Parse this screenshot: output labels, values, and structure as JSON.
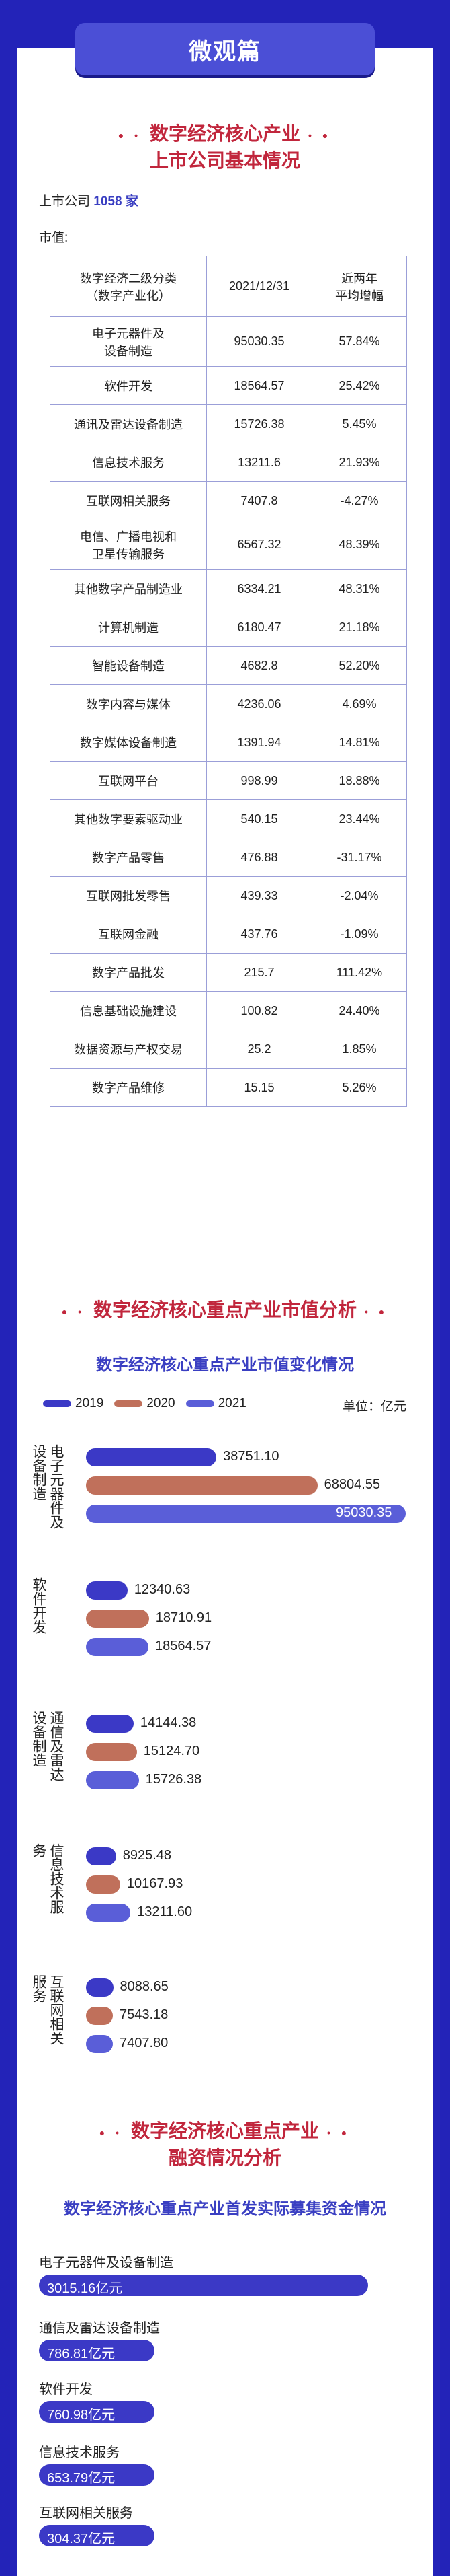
{
  "header": {
    "tab_label": "微观篇"
  },
  "section1": {
    "title_line1": "数字经济核心产业",
    "title_line2": "上市公司基本情况",
    "listed_prefix": "上市公司",
    "listed_count": "1058 家",
    "market_value_label": "市值:"
  },
  "table": {
    "headers": [
      "数字经济二级分类\n（数字产业化）",
      "2021/12/31",
      "近两年\n平均增幅"
    ],
    "rows": [
      [
        "电子元器件及\n设备制造",
        "95030.35",
        "57.84%"
      ],
      [
        "软件开发",
        "18564.57",
        "25.42%"
      ],
      [
        "通讯及雷达设备制造",
        "15726.38",
        "5.45%"
      ],
      [
        "信息技术服务",
        "13211.6",
        "21.93%"
      ],
      [
        "互联网相关服务",
        "7407.8",
        "-4.27%"
      ],
      [
        "电信、广播电视和\n卫星传输服务",
        "6567.32",
        "48.39%"
      ],
      [
        "其他数字产品制造业",
        "6334.21",
        "48.31%"
      ],
      [
        "计算机制造",
        "6180.47",
        "21.18%"
      ],
      [
        "智能设备制造",
        "4682.8",
        "52.20%"
      ],
      [
        "数字内容与媒体",
        "4236.06",
        "4.69%"
      ],
      [
        "数字媒体设备制造",
        "1391.94",
        "14.81%"
      ],
      [
        "互联网平台",
        "998.99",
        "18.88%"
      ],
      [
        "其他数字要素驱动业",
        "540.15",
        "23.44%"
      ],
      [
        "数字产品零售",
        "476.88",
        "-31.17%"
      ],
      [
        "互联网批发零售",
        "439.33",
        "-2.04%"
      ],
      [
        "互联网金融",
        "437.76",
        "-1.09%"
      ],
      [
        "数字产品批发",
        "215.7",
        "111.42%"
      ],
      [
        "信息基础设施建设",
        "100.82",
        "24.40%"
      ],
      [
        "数据资源与产权交易",
        "25.2",
        "1.85%"
      ],
      [
        "数字产品维修",
        "15.15",
        "5.26%"
      ]
    ]
  },
  "section2": {
    "title": "数字经济核心重点产业市值分析",
    "subtitle": "数字经济核心重点产业市值变化情况",
    "unit": "单位：亿元"
  },
  "chart_data": [
    {
      "type": "bar",
      "orientation": "horizontal",
      "categories": [
        "电子元器件及设备制造",
        "软件开发",
        "通信及雷达设备制造",
        "信息技术服务",
        "互联网相关服务"
      ],
      "series": [
        {
          "name": "2019",
          "color": "#3b39c6",
          "values": [
            38751.1,
            12340.63,
            14144.38,
            8925.48,
            8088.65
          ]
        },
        {
          "name": "2020",
          "color": "#c0705b",
          "values": [
            68804.55,
            18710.91,
            15124.7,
            10167.93,
            7543.18
          ]
        },
        {
          "name": "2021",
          "color": "#5a5ed8",
          "values": [
            95030.35,
            18564.57,
            15726.38,
            13211.6,
            7407.8
          ]
        }
      ],
      "value_labels": [
        [
          "38751.10",
          "68804.55",
          "95030.35"
        ],
        [
          "12340.63",
          "18710.91",
          "18564.57"
        ],
        [
          "14144.38",
          "15124.70",
          "15726.38"
        ],
        [
          "8925.48",
          "10167.93",
          "13211.60"
        ],
        [
          "8088.65",
          "7543.18",
          "7407.80"
        ]
      ]
    },
    {
      "type": "bar",
      "orientation": "horizontal",
      "title": "数字经济核心重点产业首发实际募集资金情况",
      "categories": [
        "电子元器件及设备制造",
        "通信及雷达设备制造",
        "软件开发",
        "信息技术服务",
        "互联网相关服务"
      ],
      "values": [
        3015.16,
        786.81,
        760.98,
        653.79,
        304.37
      ],
      "labels": [
        "3015.16亿元",
        "786.81亿元",
        "760.98亿元",
        "653.79亿元",
        "304.37亿元"
      ]
    }
  ],
  "section3": {
    "title_line1": "数字经济核心重点产业",
    "title_line2": "融资情况分析",
    "subtitle": "数字经济核心重点产业首发实际募集资金情况"
  },
  "chart_axis_labels": [
    "电子元器件及设备制造",
    "软件开发",
    "通信及雷达设备制造",
    "信息技术服务",
    "互联网相关服务"
  ]
}
